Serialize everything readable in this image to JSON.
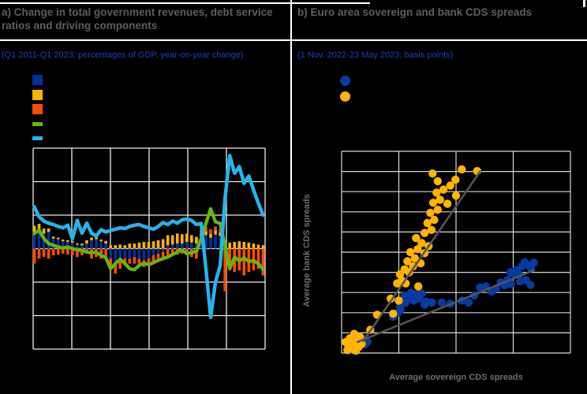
{
  "colors": {
    "background": "#000000",
    "frame_lines": "#ffffff",
    "grid_panel_a": "#ececec",
    "grid_panel_b": "#d9d9d9",
    "title_text": "#5e5e5e",
    "subtitle_text": "#1c40bb",
    "axis_label_text": "#6f6f6f",
    "trendline": "#555555",
    "bar_blue": "#003299",
    "bar_yellow": "#ffb400",
    "bar_orange": "#ff4b00",
    "line_green": "#65b800",
    "line_cyan": "#24b4ea",
    "dot_blue": "#0a3a9e",
    "dot_yellow": "#ffb400"
  },
  "chart_data": [
    {
      "type": "bar",
      "subtype": "stacked-bars-with-lines",
      "title": "a) Change in total government revenues, debt service ratios and driving components",
      "subtitle": "(Q1 2011-Q1 2023; percentages of GDP, year-on-year change)",
      "x": {
        "start": "Q1 2011",
        "end": "Q1 2023",
        "points": 49,
        "unit": "quarter",
        "gridline_interval_years": 2,
        "tick_labels_visible": false
      },
      "y": {
        "gridlines": 7,
        "estimated_range": [
          -3,
          3
        ],
        "tick_labels_visible": false
      },
      "legend_labels_visible": false,
      "legend_swatches": [
        {
          "shape": "square",
          "color": "#003299"
        },
        {
          "shape": "square",
          "color": "#ffb400"
        },
        {
          "shape": "square",
          "color": "#ff4b00"
        },
        {
          "shape": "line",
          "color": "#65b800"
        },
        {
          "shape": "line",
          "color": "#24b4ea"
        }
      ],
      "series": [
        {
          "name": "bar-component-dark-blue",
          "kind": "bar",
          "color": "#003299",
          "values": [
            0.5,
            0.52,
            0.45,
            0.5,
            0.3,
            0.28,
            0.22,
            0.2,
            0.18,
            0.12,
            0.1,
            0.15,
            0.25,
            0.28,
            0.22,
            0.15,
            -0.3,
            -0.45,
            -0.35,
            -0.3,
            -0.3,
            -0.25,
            -0.3,
            -0.35,
            -0.3,
            -0.2,
            -0.15,
            -0.1,
            0.1,
            0.12,
            0.15,
            0.15,
            0.2,
            0.18,
            0.15,
            0.35,
            0.4,
            0.32,
            0.42,
            0.38,
            0.05,
            0.0,
            0.0,
            0.0,
            0.0,
            0.0,
            0.0,
            0.0,
            0.0
          ]
        },
        {
          "name": "bar-component-yellow",
          "kind": "bar",
          "color": "#ffb400",
          "values": [
            0.18,
            0.22,
            0.15,
            0.1,
            0.06,
            0.05,
            0.05,
            0.05,
            0.05,
            0.04,
            0.05,
            0.1,
            0.08,
            0.06,
            0.05,
            0.08,
            0.1,
            0.1,
            0.12,
            0.1,
            0.15,
            0.15,
            0.18,
            0.2,
            0.2,
            0.22,
            0.25,
            0.28,
            0.3,
            0.28,
            0.3,
            0.28,
            0.25,
            0.22,
            0.2,
            0.1,
            0.12,
            0.12,
            0.12,
            0.1,
            0.15,
            0.18,
            0.2,
            0.22,
            0.2,
            0.18,
            0.15,
            0.12,
            0.1
          ]
        },
        {
          "name": "bar-component-orange",
          "kind": "bar",
          "color": "#ff4b00",
          "values": [
            -0.45,
            -0.3,
            -0.25,
            -0.3,
            -0.2,
            -0.18,
            -0.15,
            -0.18,
            -0.2,
            -0.25,
            -0.2,
            -0.15,
            -0.3,
            -0.25,
            -0.3,
            -0.25,
            -0.3,
            -0.3,
            -0.25,
            -0.2,
            -0.15,
            -0.2,
            -0.15,
            -0.2,
            -0.15,
            -0.2,
            -0.2,
            -0.25,
            -0.25,
            -0.2,
            -0.18,
            -0.15,
            -0.2,
            -0.25,
            -0.3,
            0.1,
            0.12,
            0.14,
            0.12,
            0.1,
            -1.27,
            -0.65,
            -0.7,
            -0.65,
            -0.8,
            -0.7,
            -0.65,
            -0.6,
            -0.8
          ]
        },
        {
          "name": "line-component-green",
          "kind": "line",
          "color": "#65b800",
          "values": [
            0.45,
            0.55,
            0.3,
            0.15,
            0.1,
            0.05,
            0.02,
            0.05,
            0.0,
            -0.03,
            -0.06,
            -0.1,
            -0.13,
            -0.1,
            -0.2,
            -0.27,
            -0.6,
            -0.45,
            -0.32,
            -0.44,
            -0.6,
            -0.63,
            -0.5,
            -0.44,
            -0.48,
            -0.42,
            -0.35,
            -0.3,
            -0.25,
            -0.18,
            -0.1,
            -0.04,
            -0.15,
            -0.12,
            -0.08,
            0.3,
            0.75,
            1.19,
            0.8,
            0.75,
            0.1,
            -0.6,
            -0.25,
            -0.37,
            -0.28,
            -0.39,
            -0.36,
            -0.45,
            -0.62
          ]
        },
        {
          "name": "line-debt-service-cyan",
          "kind": "line",
          "color": "#24b4ea",
          "values": [
            1.25,
            0.95,
            0.82,
            0.76,
            0.72,
            0.66,
            0.62,
            0.7,
            0.3,
            0.84,
            0.46,
            0.76,
            0.46,
            0.38,
            0.56,
            0.5,
            0.54,
            0.58,
            0.62,
            0.6,
            0.66,
            0.7,
            0.72,
            0.66,
            0.62,
            0.58,
            0.66,
            0.78,
            0.72,
            0.82,
            0.76,
            0.86,
            0.88,
            0.84,
            0.72,
            0.75,
            -0.6,
            -2.05,
            -1.0,
            -0.5,
            1.5,
            2.78,
            2.25,
            2.45,
            1.95,
            2.17,
            1.75,
            1.35,
            1.0
          ]
        }
      ]
    },
    {
      "type": "scatter",
      "title": "b) Euro area sovereign and bank CDS spreads",
      "subtitle": "(1 Nov. 2022-23 May 2023; basis points)",
      "xlabel": "Average sovereign CDS spreads",
      "ylabel": "Average bank CDS spreads",
      "grid": {
        "cols": 4,
        "rows": 10,
        "tick_labels_visible": false
      },
      "units_note": "points estimated in gridline units: x 0-4 left to right, y 0-10 bottom to top (axis tick labels not visible)",
      "legend_labels_visible": false,
      "legend_swatches": [
        {
          "shape": "circle",
          "color": "#0a3a9e"
        },
        {
          "shape": "circle",
          "color": "#ffb400"
        }
      ],
      "series": [
        {
          "name": "scatter-blue",
          "color": "#0a3a9e",
          "points": [
            [
              0.1,
              0.45
            ],
            [
              0.16,
              0.3
            ],
            [
              0.24,
              0.2
            ],
            [
              0.3,
              0.35
            ],
            [
              0.2,
              0.6
            ],
            [
              0.33,
              0.55
            ],
            [
              0.4,
              0.42
            ],
            [
              0.12,
              0.12
            ],
            [
              0.27,
              0.75
            ],
            [
              0.38,
              0.7
            ],
            [
              0.45,
              0.55
            ],
            [
              0.18,
              0.88
            ],
            [
              0.9,
              1.8
            ],
            [
              0.98,
              2.0
            ],
            [
              1.03,
              2.15
            ],
            [
              1.02,
              2.3
            ],
            [
              1.06,
              2.55
            ],
            [
              1.12,
              2.5
            ],
            [
              1.16,
              2.65
            ],
            [
              1.2,
              2.78
            ],
            [
              1.26,
              2.6
            ],
            [
              1.3,
              2.9
            ],
            [
              1.36,
              2.7
            ],
            [
              1.1,
              2.85
            ],
            [
              1.22,
              3.0
            ],
            [
              1.4,
              2.95
            ],
            [
              1.48,
              2.55
            ],
            [
              1.58,
              2.5
            ],
            [
              1.45,
              2.4
            ],
            [
              1.75,
              2.5
            ],
            [
              1.9,
              2.45
            ],
            [
              2.1,
              2.6
            ],
            [
              2.22,
              2.5
            ],
            [
              2.32,
              2.85
            ],
            [
              2.42,
              3.25
            ],
            [
              2.52,
              3.3
            ],
            [
              2.62,
              3.05
            ],
            [
              2.7,
              3.2
            ],
            [
              2.78,
              3.5
            ],
            [
              2.85,
              3.35
            ],
            [
              2.9,
              3.62
            ],
            [
              2.96,
              3.42
            ],
            [
              3.0,
              3.95
            ],
            [
              3.05,
              4.1
            ],
            [
              3.1,
              3.9
            ],
            [
              3.15,
              4.3
            ],
            [
              3.2,
              4.5
            ],
            [
              3.26,
              4.35
            ],
            [
              3.31,
              4.2
            ],
            [
              3.36,
              4.48
            ],
            [
              3.12,
              3.55
            ],
            [
              3.22,
              3.62
            ],
            [
              3.3,
              3.38
            ],
            [
              2.95,
              4.0
            ]
          ]
        },
        {
          "name": "scatter-yellow",
          "color": "#ffb400",
          "points": [
            [
              0.07,
              0.55
            ],
            [
              0.12,
              0.35
            ],
            [
              0.18,
              0.22
            ],
            [
              0.25,
              0.12
            ],
            [
              0.3,
              0.3
            ],
            [
              0.2,
              0.5
            ],
            [
              0.14,
              0.72
            ],
            [
              0.28,
              0.65
            ],
            [
              0.35,
              0.45
            ],
            [
              0.1,
              0.15
            ],
            [
              0.32,
              0.8
            ],
            [
              0.22,
              0.95
            ],
            [
              0.5,
              1.15
            ],
            [
              0.62,
              1.9
            ],
            [
              0.9,
              1.95
            ],
            [
              0.86,
              2.7
            ],
            [
              1.0,
              2.6
            ],
            [
              1.34,
              3.3
            ],
            [
              0.97,
              3.45
            ],
            [
              1.05,
              3.6
            ],
            [
              1.12,
              3.45
            ],
            [
              1.02,
              3.9
            ],
            [
              1.1,
              4.15
            ],
            [
              1.18,
              4.0
            ],
            [
              1.25,
              4.3
            ],
            [
              1.15,
              4.55
            ],
            [
              1.28,
              4.7
            ],
            [
              1.38,
              4.45
            ],
            [
              1.2,
              5.0
            ],
            [
              1.33,
              5.15
            ],
            [
              1.45,
              4.95
            ],
            [
              1.4,
              5.45
            ],
            [
              1.52,
              5.3
            ],
            [
              1.3,
              5.7
            ],
            [
              1.45,
              5.95
            ],
            [
              1.57,
              6.1
            ],
            [
              1.5,
              6.45
            ],
            [
              1.62,
              6.6
            ],
            [
              1.55,
              6.95
            ],
            [
              1.68,
              7.1
            ],
            [
              1.6,
              7.45
            ],
            [
              1.72,
              7.6
            ],
            [
              1.66,
              7.95
            ],
            [
              1.78,
              8.1
            ],
            [
              1.68,
              8.52
            ],
            [
              1.99,
              8.59
            ],
            [
              2.1,
              9.1
            ],
            [
              2.37,
              9.02
            ],
            [
              1.59,
              8.9
            ],
            [
              1.9,
              8.3
            ],
            [
              2.0,
              7.8
            ],
            [
              1.85,
              7.4
            ]
          ]
        }
      ],
      "trendlines": [
        {
          "series": "scatter-yellow",
          "color": "#555555",
          "from": [
            0.38,
            0.6
          ],
          "to": [
            2.42,
            9.0
          ]
        },
        {
          "series": "scatter-blue",
          "color": "#555555",
          "from": [
            0.28,
            0.55
          ],
          "to": [
            3.36,
            4.1
          ]
        }
      ]
    }
  ]
}
